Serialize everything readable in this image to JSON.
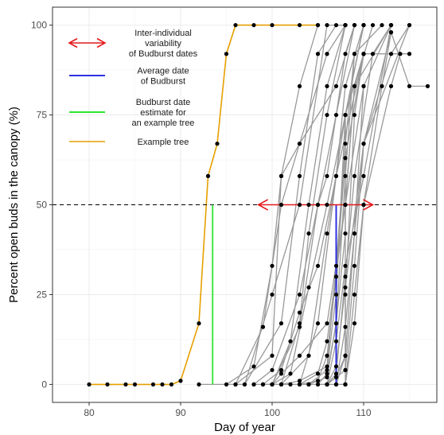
{
  "chart_data": {
    "type": "line",
    "xlabel": "Day of year",
    "ylabel": "Percent open buds in the canopy (%)",
    "xlim": [
      76,
      118
    ],
    "ylim": [
      -5,
      105
    ],
    "x_ticks": [
      80,
      90,
      100,
      110
    ],
    "y_ticks": [
      0,
      25,
      50,
      75,
      100
    ],
    "grid": true,
    "threshold_y": 50,
    "legend_position": "top-left inside",
    "legend": [
      {
        "key": "variability",
        "label": [
          "Inter-individual",
          "variability",
          "of Budburst dates"
        ],
        "color": "#e31a1c",
        "symbol": "double-arrow"
      },
      {
        "key": "average",
        "label": [
          "Average date",
          "of Budburst"
        ],
        "color": "#2c32e0",
        "symbol": "line"
      },
      {
        "key": "estimate",
        "label": [
          "Budburst date",
          "estimate for",
          "an example tree"
        ],
        "color": "#2ee62e",
        "symbol": "line"
      },
      {
        "key": "example",
        "label": [
          "Example tree"
        ],
        "color": "#e69f00",
        "symbol": "line"
      }
    ],
    "example_tree": {
      "x": [
        80,
        82,
        84,
        85,
        87,
        88,
        89,
        90,
        92,
        93,
        94,
        95,
        96,
        98,
        100,
        103,
        105
      ],
      "y": [
        0,
        0,
        0,
        0,
        0,
        0,
        0,
        1,
        17,
        58,
        67,
        92,
        100,
        100,
        100,
        100,
        100
      ]
    },
    "variability_range": [
      98.5,
      111
    ],
    "average_budburst": 107,
    "example_estimate": 93.5,
    "tree_series": [
      {
        "x": [
          92,
          97,
          100,
          103,
          106,
          108
        ],
        "y": [
          0,
          0,
          25,
          50,
          100,
          100
        ]
      },
      {
        "x": [
          95,
          98,
          100,
          101,
          103,
          105
        ],
        "y": [
          0,
          5,
          33,
          58,
          83,
          100
        ]
      },
      {
        "x": [
          96,
          100,
          101,
          103,
          106,
          108
        ],
        "y": [
          0,
          8,
          58,
          67,
          92,
          100
        ]
      },
      {
        "x": [
          96,
          99,
          101,
          103,
          107,
          109
        ],
        "y": [
          0,
          16,
          50,
          67,
          83,
          100
        ]
      },
      {
        "x": [
          97,
          101,
          103,
          105,
          107,
          108
        ],
        "y": [
          0,
          17,
          58,
          92,
          100,
          100
        ]
      },
      {
        "x": [
          98,
          100,
          102,
          104,
          106,
          108
        ],
        "y": [
          0,
          0,
          12,
          50,
          83,
          100
        ]
      },
      {
        "x": [
          98,
          100,
          103,
          105,
          107,
          109
        ],
        "y": [
          0,
          4,
          25,
          50,
          75,
          100
        ]
      },
      {
        "x": [
          99,
          101,
          103,
          104,
          106,
          108
        ],
        "y": [
          0,
          0,
          17,
          42,
          75,
          100
        ]
      },
      {
        "x": [
          99,
          101,
          103,
          105,
          107,
          110
        ],
        "y": [
          0,
          4,
          20,
          33,
          58,
          92
        ]
      },
      {
        "x": [
          99,
          101,
          104,
          106,
          108,
          110
        ],
        "y": [
          0,
          0,
          8,
          42,
          75,
          92
        ]
      },
      {
        "x": [
          100,
          102,
          104,
          106,
          108,
          110
        ],
        "y": [
          0,
          3,
          27,
          50,
          75,
          100
        ]
      },
      {
        "x": [
          100,
          103,
          105,
          106,
          108,
          109
        ],
        "y": [
          0,
          16,
          50,
          58,
          92,
          100
        ]
      },
      {
        "x": [
          100,
          101,
          103,
          106,
          108,
          110
        ],
        "y": [
          0,
          3,
          8,
          17,
          50,
          83
        ]
      },
      {
        "x": [
          101,
          103,
          105,
          107,
          108,
          110
        ],
        "y": [
          0,
          0,
          17,
          58,
          83,
          100
        ]
      },
      {
        "x": [
          101,
          103,
          106,
          107,
          108,
          109
        ],
        "y": [
          0,
          1,
          5,
          33,
          67,
          92
        ]
      },
      {
        "x": [
          102,
          104,
          106,
          107,
          108,
          110
        ],
        "y": [
          0,
          0,
          4,
          25,
          75,
          100
        ]
      },
      {
        "x": [
          103,
          105,
          106,
          108,
          109,
          113
        ],
        "y": [
          0,
          3,
          12,
          50,
          83,
          100
        ]
      },
      {
        "x": [
          103,
          105,
          106,
          107,
          108,
          110
        ],
        "y": [
          0,
          1,
          8,
          30,
          63,
          92
        ]
      },
      {
        "x": [
          104,
          106,
          107,
          108,
          110,
          113
        ],
        "y": [
          0,
          0,
          12,
          33,
          58,
          100
        ]
      },
      {
        "x": [
          104,
          106,
          107,
          108,
          109,
          112
        ],
        "y": [
          0,
          2,
          17,
          58,
          92,
          100
        ]
      },
      {
        "x": [
          105,
          106,
          107,
          108,
          110,
          115
        ],
        "y": [
          0,
          0,
          5,
          27,
          67,
          100
        ]
      },
      {
        "x": [
          106,
          107,
          108,
          109,
          110,
          113
        ],
        "y": [
          0,
          0,
          16,
          42,
          83,
          100
        ]
      },
      {
        "x": [
          106,
          107,
          108,
          109,
          111,
          113
        ],
        "y": [
          0,
          3,
          30,
          58,
          92,
          100
        ]
      },
      {
        "x": [
          106,
          108,
          108,
          109,
          110,
          115
        ],
        "y": [
          0,
          4,
          25,
          75,
          92,
          92
        ]
      },
      {
        "x": [
          107,
          108,
          109,
          110,
          113,
          115
        ],
        "y": [
          0,
          8,
          42,
          67,
          92,
          100
        ]
      },
      {
        "x": [
          107,
          108,
          109,
          110,
          113,
          114
        ],
        "y": [
          0,
          0,
          17,
          50,
          83,
          92
        ]
      },
      {
        "x": [
          108,
          108,
          109,
          110,
          113,
          115,
          117
        ],
        "y": [
          0,
          4,
          33,
          67,
          98,
          83,
          83
        ]
      },
      {
        "x": [
          108,
          108,
          109,
          110,
          112,
          113
        ],
        "y": [
          0,
          0,
          25,
          50,
          83,
          98
        ]
      },
      {
        "x": [
          106,
          107,
          108,
          108,
          109,
          111
        ],
        "y": [
          0,
          2,
          8,
          50,
          83,
          100
        ]
      },
      {
        "x": [
          105,
          106,
          107,
          108,
          108,
          110
        ],
        "y": [
          0,
          3,
          17,
          42,
          75,
          100
        ]
      }
    ]
  }
}
